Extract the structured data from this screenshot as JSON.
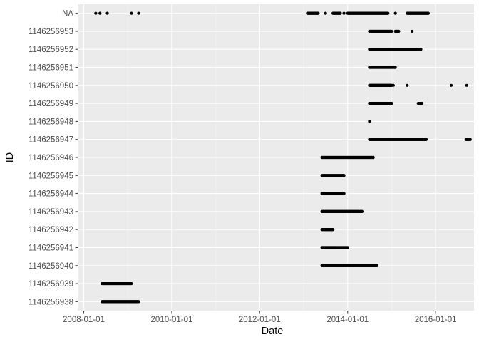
{
  "colors": {
    "panel_background": "#EBEBEB",
    "grid_major": "#FFFFFF",
    "grid_minor": "#F5F5F5",
    "tick_text": "#4D4D4D",
    "point": "#000000"
  },
  "chart_data": {
    "type": "scatter",
    "title": "",
    "xlabel": "Date",
    "ylabel": "ID",
    "x_scale": "date",
    "xlim": [
      "2007-11-12",
      "2016-11-15"
    ],
    "x_ticks": [
      "2008-01-01",
      "2010-01-01",
      "2012-01-01",
      "2014-01-01",
      "2016-01-01"
    ],
    "y_categories": [
      "1146256938",
      "1146256939",
      "1146256940",
      "1146256941",
      "1146256942",
      "1146256943",
      "1146256944",
      "1146256945",
      "1146256946",
      "1146256947",
      "1146256948",
      "1146256949",
      "1146256950",
      "1146256951",
      "1146256952",
      "1146256953",
      "NA"
    ],
    "grid": true,
    "legend": "none",
    "series": [
      {
        "id": "1146256938",
        "ranges": [
          [
            "2008-06-01",
            "2009-04-01"
          ]
        ],
        "points": []
      },
      {
        "id": "1146256939",
        "ranges": [
          [
            "2008-06-01",
            "2009-02-01"
          ]
        ],
        "points": []
      },
      {
        "id": "1146256940",
        "ranges": [
          [
            "2013-06-01",
            "2014-09-01"
          ]
        ],
        "points": []
      },
      {
        "id": "1146256941",
        "ranges": [
          [
            "2013-06-01",
            "2014-01-01"
          ]
        ],
        "points": []
      },
      {
        "id": "1146256942",
        "ranges": [
          [
            "2013-06-01",
            "2013-09-01"
          ]
        ],
        "points": []
      },
      {
        "id": "1146256943",
        "ranges": [
          [
            "2013-06-01",
            "2014-05-01"
          ]
        ],
        "points": []
      },
      {
        "id": "1146256944",
        "ranges": [
          [
            "2013-06-01",
            "2013-12-01"
          ]
        ],
        "points": []
      },
      {
        "id": "1146256945",
        "ranges": [
          [
            "2013-06-01",
            "2013-12-01"
          ]
        ],
        "points": []
      },
      {
        "id": "1146256946",
        "ranges": [
          [
            "2013-06-01",
            "2014-08-01"
          ]
        ],
        "points": []
      },
      {
        "id": "1146256947",
        "ranges": [
          [
            "2014-07-01",
            "2015-10-15"
          ],
          [
            "2016-09-10",
            "2016-10-15"
          ]
        ],
        "points": []
      },
      {
        "id": "1146256948",
        "ranges": [],
        "points": [
          "2014-07-01"
        ]
      },
      {
        "id": "1146256949",
        "ranges": [
          [
            "2014-07-01",
            "2015-01-01"
          ],
          [
            "2015-08-10",
            "2015-09-10"
          ]
        ],
        "points": []
      },
      {
        "id": "1146256950",
        "ranges": [
          [
            "2014-07-01",
            "2015-01-01"
          ]
        ],
        "points": [
          "2015-01-15",
          "2015-05-10",
          "2016-05-10",
          "2016-09-15"
        ]
      },
      {
        "id": "1146256951",
        "ranges": [
          [
            "2014-07-01",
            "2015-02-01"
          ]
        ],
        "points": []
      },
      {
        "id": "1146256952",
        "ranges": [
          [
            "2014-07-01",
            "2015-09-01"
          ]
        ],
        "points": []
      },
      {
        "id": "1146256953",
        "ranges": [
          [
            "2014-07-01",
            "2015-01-01"
          ],
          [
            "2015-02-01",
            "2015-03-01"
          ]
        ],
        "points": [
          "2015-06-20"
        ]
      },
      {
        "id": "NA",
        "ranges": [
          [
            "2013-02-01",
            "2013-05-01"
          ],
          [
            "2013-09-01",
            "2013-11-01"
          ],
          [
            "2014-01-01",
            "2014-12-01"
          ],
          [
            "2015-05-10",
            "2015-11-01"
          ]
        ],
        "points": [
          "2008-04-10",
          "2008-05-15",
          "2008-07-15",
          "2009-02-01",
          "2009-04-01",
          "2013-07-01",
          "2013-09-15",
          "2013-12-01",
          "2015-02-01"
        ]
      }
    ]
  }
}
